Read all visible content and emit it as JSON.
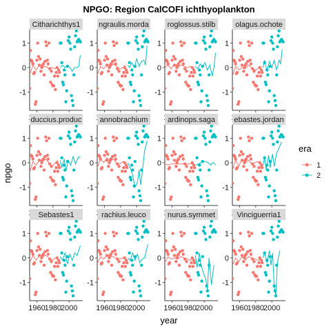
{
  "chart_data": {
    "type": "scatter",
    "title": "NPGO: Region CalCOFI ichthyoplankton",
    "xlabel": "year",
    "ylabel": "npgo",
    "xlim": [
      1951,
      2017
    ],
    "ylim": [
      -1.75,
      1.55
    ],
    "x_ticks": [
      1960,
      1980,
      2000
    ],
    "x_tick_labels": [
      "1960",
      "1980",
      "2000"
    ],
    "y_ticks": [
      -1,
      0,
      1
    ],
    "y_tick_labels": [
      "-1",
      "0",
      "1"
    ],
    "legend": {
      "title": "era",
      "position": "right",
      "entries": [
        {
          "label": "1",
          "color": "#F8766D"
        },
        {
          "label": "2",
          "color": "#00BFC4"
        }
      ]
    },
    "era_colors": {
      "1": "#F8766D",
      "2": "#00BFC4"
    },
    "points": {
      "1": [
        [
          1950,
          -0.8
        ],
        [
          1951,
          -0.85
        ],
        [
          1952,
          0.7
        ],
        [
          1953,
          0.3
        ],
        [
          1954,
          0.25
        ],
        [
          1955,
          0.15
        ],
        [
          1956,
          -0.25
        ],
        [
          1957,
          -0.2
        ],
        [
          1958,
          -1.5
        ],
        [
          1959,
          -1.4
        ],
        [
          1960,
          0.3
        ],
        [
          1961,
          1.0
        ],
        [
          1962,
          0.45
        ],
        [
          1963,
          0.1
        ],
        [
          1964,
          0.35
        ],
        [
          1965,
          -0.15
        ],
        [
          1966,
          0.0
        ],
        [
          1967,
          0.1
        ],
        [
          1968,
          0.15
        ],
        [
          1969,
          -0.3
        ],
        [
          1970,
          0.25
        ],
        [
          1971,
          1.05
        ],
        [
          1972,
          0.9
        ],
        [
          1973,
          0.3
        ],
        [
          1974,
          0.15
        ],
        [
          1975,
          1.0
        ],
        [
          1976,
          -0.05
        ],
        [
          1977,
          -0.6
        ],
        [
          1978,
          -0.15
        ],
        [
          1979,
          -0.7
        ],
        [
          1980,
          -0.75
        ],
        [
          1981,
          -0.75
        ],
        [
          1982,
          -0.35
        ],
        [
          1983,
          -0.9
        ],
        [
          1984,
          -0.2
        ],
        [
          1985,
          0.0
        ],
        [
          1986,
          -0.35
        ],
        [
          1987,
          -0.1
        ],
        [
          1988,
          -0.2
        ]
      ],
      "2": [
        [
          1989,
          1.0
        ],
        [
          1990,
          1.0
        ],
        [
          1991,
          0.2
        ],
        [
          1992,
          -0.6
        ],
        [
          1993,
          -0.7
        ],
        [
          1994,
          -0.1
        ],
        [
          1995,
          -0.3
        ],
        [
          1996,
          -1.4
        ],
        [
          1997,
          -0.95
        ],
        [
          1998,
          0.05
        ],
        [
          1999,
          1.1
        ],
        [
          2000,
          1.25
        ],
        [
          2001,
          1.0
        ],
        [
          2002,
          0.75
        ],
        [
          2003,
          -1.15
        ],
        [
          2004,
          -1.35
        ],
        [
          2005,
          -1.55
        ],
        [
          2006,
          -0.3
        ],
        [
          2007,
          0.85
        ],
        [
          2008,
          1.3
        ],
        [
          2009,
          1.5
        ],
        [
          2010,
          1.05
        ],
        [
          2011,
          1.1
        ],
        [
          2012,
          1.15
        ],
        [
          2013,
          1.1
        ],
        [
          2014,
          1.05
        ]
      ]
    },
    "panels": [
      {
        "strip": "Citharichthys1",
        "fit1": [
          [
            1951,
            -0.3
          ],
          [
            1955,
            0.1
          ],
          [
            1959,
            -0.1
          ],
          [
            1963,
            0.1
          ],
          [
            1967,
            0.0
          ],
          [
            1971,
            0.05
          ],
          [
            1975,
            -0.05
          ],
          [
            1979,
            0.0
          ],
          [
            1983,
            -0.05
          ],
          [
            1986,
            0.0
          ]
        ],
        "fit2": [
          [
            1989,
            0.0
          ],
          [
            1992,
            0.1
          ],
          [
            1995,
            0.0
          ],
          [
            1998,
            0.1
          ],
          [
            2001,
            0.0
          ],
          [
            2004,
            -0.15
          ],
          [
            2007,
            0.0
          ],
          [
            2010,
            0.0
          ],
          [
            2012,
            0.05
          ],
          [
            2014,
            0.5
          ]
        ]
      },
      {
        "strip": "ngraulis.morda",
        "fit1": [
          [
            1951,
            -0.3
          ],
          [
            1955,
            0.05
          ],
          [
            1959,
            -0.05
          ],
          [
            1963,
            0.1
          ],
          [
            1967,
            0.0
          ],
          [
            1971,
            0.15
          ],
          [
            1975,
            0.05
          ],
          [
            1979,
            -0.05
          ],
          [
            1983,
            0.0
          ],
          [
            1986,
            0.1
          ]
        ],
        "fit2": [
          [
            1989,
            0.1
          ],
          [
            1991,
            0.0
          ],
          [
            1994,
            0.2
          ],
          [
            1997,
            0.0
          ],
          [
            2000,
            0.35
          ],
          [
            2003,
            0.05
          ],
          [
            2006,
            0.25
          ],
          [
            2009,
            0.3
          ],
          [
            2011,
            0.1
          ],
          [
            2013,
            0.9
          ]
        ]
      },
      {
        "strip": "roglossus.stilb",
        "fit1": [
          [
            1951,
            0.0
          ],
          [
            1955,
            0.1
          ],
          [
            1959,
            -0.05
          ],
          [
            1963,
            0.15
          ],
          [
            1967,
            0.0
          ],
          [
            1971,
            0.1
          ],
          [
            1975,
            0.05
          ],
          [
            1979,
            0.0
          ],
          [
            1983,
            0.05
          ],
          [
            1986,
            0.0
          ]
        ],
        "fit2": [
          [
            1989,
            0.05
          ],
          [
            1992,
            -0.05
          ],
          [
            1995,
            0.15
          ],
          [
            1998,
            0.0
          ],
          [
            2001,
            0.2
          ],
          [
            2004,
            -0.1
          ],
          [
            2007,
            0.1
          ],
          [
            2010,
            -0.35
          ],
          [
            2012,
            0.0
          ],
          [
            2014,
            0.6
          ]
        ]
      },
      {
        "strip": "olagus.ochote",
        "fit1": [
          [
            1951,
            -0.35
          ],
          [
            1955,
            0.05
          ],
          [
            1959,
            -0.1
          ],
          [
            1963,
            0.0
          ],
          [
            1967,
            -0.05
          ],
          [
            1971,
            0.1
          ],
          [
            1975,
            0.0
          ],
          [
            1979,
            -0.1
          ],
          [
            1983,
            -0.05
          ],
          [
            1986,
            0.0
          ]
        ],
        "fit2": [
          [
            1989,
            0.0
          ],
          [
            1991,
            0.3
          ],
          [
            1994,
            -0.15
          ],
          [
            1997,
            0.25
          ],
          [
            2000,
            0.0
          ],
          [
            2003,
            0.3
          ],
          [
            2006,
            -0.1
          ],
          [
            2009,
            0.3
          ],
          [
            2011,
            0.15
          ],
          [
            2013,
            0.75
          ]
        ]
      },
      {
        "strip": "duccius.produc",
        "fit1": [
          [
            1951,
            -0.4
          ],
          [
            1955,
            0.05
          ],
          [
            1959,
            -0.1
          ],
          [
            1963,
            0.1
          ],
          [
            1967,
            0.05
          ],
          [
            1971,
            0.15
          ],
          [
            1975,
            0.0
          ],
          [
            1979,
            -0.15
          ],
          [
            1983,
            0.0
          ],
          [
            1986,
            0.1
          ]
        ],
        "fit2": [
          [
            1989,
            0.1
          ],
          [
            1991,
            -0.2
          ],
          [
            1994,
            0.15
          ],
          [
            1996,
            -0.35
          ],
          [
            1999,
            0.1
          ],
          [
            2002,
            -0.1
          ],
          [
            2005,
            0.25
          ],
          [
            2008,
            -0.05
          ],
          [
            2011,
            0.2
          ],
          [
            2014,
            0.25
          ]
        ]
      },
      {
        "strip": "annobrachium",
        "fit1": [
          [
            1951,
            -0.2
          ],
          [
            1955,
            0.15
          ],
          [
            1959,
            0.0
          ],
          [
            1963,
            0.2
          ],
          [
            1967,
            0.05
          ],
          [
            1971,
            0.15
          ],
          [
            1975,
            0.0
          ],
          [
            1979,
            -0.05
          ],
          [
            1983,
            0.05
          ],
          [
            1986,
            0.0
          ]
        ],
        "fit2": [
          [
            1989,
            0.0
          ],
          [
            1992,
            -0.2
          ],
          [
            1995,
            -0.5
          ],
          [
            1998,
            -1.0
          ],
          [
            2001,
            -0.8
          ],
          [
            2003,
            -0.3
          ],
          [
            2005,
            -0.9
          ],
          [
            2007,
            -0.4
          ],
          [
            2010,
            0.5
          ],
          [
            2013,
            0.9
          ]
        ]
      },
      {
        "strip": "ardinops.saga",
        "fit1": [
          [
            1951,
            -0.05
          ],
          [
            1955,
            -0.1
          ],
          [
            1959,
            -0.05
          ],
          [
            1963,
            -0.05
          ],
          [
            1967,
            -0.05
          ],
          [
            1971,
            -0.05
          ],
          [
            1975,
            -0.05
          ],
          [
            1979,
            -0.05
          ],
          [
            1983,
            -0.05
          ],
          [
            1987,
            -0.05
          ]
        ],
        "fit2": [
          [
            1990,
            -0.1
          ],
          [
            1993,
            -0.05
          ],
          [
            1996,
            0.0
          ],
          [
            1999,
            0.05
          ],
          [
            2002,
            0.05
          ],
          [
            2005,
            0.0
          ],
          [
            2008,
            -0.1
          ],
          [
            2010,
            0.0
          ],
          [
            2012,
            0.0
          ],
          [
            2014,
            -0.1
          ]
        ]
      },
      {
        "strip": "ebastes.jordan",
        "fit1": [
          [
            1951,
            -0.3
          ],
          [
            1955,
            0.1
          ],
          [
            1959,
            -0.15
          ],
          [
            1963,
            0.15
          ],
          [
            1967,
            0.0
          ],
          [
            1971,
            0.1
          ],
          [
            1975,
            -0.05
          ],
          [
            1979,
            0.0
          ],
          [
            1983,
            0.05
          ],
          [
            1986,
            -0.05
          ]
        ],
        "fit2": [
          [
            1989,
            -0.1
          ],
          [
            1991,
            0.2
          ],
          [
            1993,
            -0.3
          ],
          [
            1996,
            0.3
          ],
          [
            1998,
            -0.2
          ],
          [
            2001,
            0.35
          ],
          [
            2003,
            -0.15
          ],
          [
            2006,
            0.4
          ],
          [
            2009,
            0.6
          ],
          [
            2012,
            0.85
          ]
        ]
      },
      {
        "strip": "Sebastes1",
        "fit1": [
          [
            1951,
            -0.2
          ],
          [
            1955,
            0.1
          ],
          [
            1959,
            -0.1
          ],
          [
            1963,
            0.1
          ],
          [
            1967,
            0.05
          ],
          [
            1971,
            0.1
          ],
          [
            1975,
            0.0
          ],
          [
            1979,
            -0.1
          ],
          [
            1983,
            0.0
          ],
          [
            1986,
            0.05
          ]
        ],
        "fit2": [
          [
            1989,
            0.05
          ],
          [
            1992,
            -0.1
          ],
          [
            1995,
            0.2
          ],
          [
            1998,
            -0.25
          ],
          [
            2001,
            0.15
          ],
          [
            2004,
            -0.1
          ],
          [
            2007,
            0.2
          ],
          [
            2010,
            0.1
          ],
          [
            2012,
            0.3
          ],
          [
            2014,
            0.5
          ]
        ]
      },
      {
        "strip": "rachius.leuco",
        "fit1": [
          [
            1951,
            -0.25
          ],
          [
            1955,
            0.05
          ],
          [
            1959,
            -0.05
          ],
          [
            1963,
            0.1
          ],
          [
            1967,
            0.05
          ],
          [
            1971,
            0.05
          ],
          [
            1975,
            0.0
          ],
          [
            1979,
            -0.05
          ],
          [
            1983,
            0.0
          ],
          [
            1986,
            0.05
          ]
        ],
        "fit2": [
          [
            1989,
            0.0
          ],
          [
            1992,
            -0.1
          ],
          [
            1995,
            0.2
          ],
          [
            1998,
            -0.1
          ],
          [
            2001,
            0.15
          ],
          [
            2004,
            -0.2
          ],
          [
            2007,
            -0.05
          ],
          [
            2010,
            0.0
          ],
          [
            2012,
            0.3
          ],
          [
            2014,
            0.55
          ]
        ]
      },
      {
        "strip": "nurus.symmet",
        "fit1": [
          [
            1951,
            -0.2
          ],
          [
            1955,
            0.05
          ],
          [
            1959,
            -0.05
          ],
          [
            1963,
            0.0
          ],
          [
            1967,
            -0.05
          ],
          [
            1971,
            0.05
          ],
          [
            1975,
            0.0
          ],
          [
            1979,
            -0.05
          ],
          [
            1983,
            -0.1
          ],
          [
            1986,
            0.0
          ]
        ],
        "fit2": [
          [
            1989,
            0.1
          ],
          [
            1991,
            -0.4
          ],
          [
            1994,
            0.2
          ],
          [
            1996,
            -0.3
          ],
          [
            1999,
            -0.6
          ],
          [
            2002,
            -0.9
          ],
          [
            2004,
            -1.3
          ],
          [
            2006,
            0.0
          ],
          [
            2009,
            -1.1
          ],
          [
            2012,
            -0.3
          ]
        ]
      },
      {
        "strip": "Vinciguerria1",
        "fit1": [
          [
            1951,
            -0.3
          ],
          [
            1955,
            0.0
          ],
          [
            1959,
            -0.15
          ],
          [
            1963,
            0.05
          ],
          [
            1967,
            -0.1
          ],
          [
            1971,
            0.05
          ],
          [
            1975,
            0.0
          ],
          [
            1979,
            -0.05
          ],
          [
            1983,
            -0.1
          ],
          [
            1986,
            -0.05
          ]
        ],
        "fit2": [
          [
            1989,
            0.0
          ],
          [
            1991,
            0.2
          ],
          [
            1994,
            -0.2
          ],
          [
            1997,
            0.3
          ],
          [
            1999,
            -0.3
          ],
          [
            2001,
            0.2
          ],
          [
            2003,
            -1.2
          ],
          [
            2005,
            -1.55
          ],
          [
            2007,
            -0.2
          ],
          [
            2010,
            0.3
          ]
        ]
      }
    ]
  }
}
